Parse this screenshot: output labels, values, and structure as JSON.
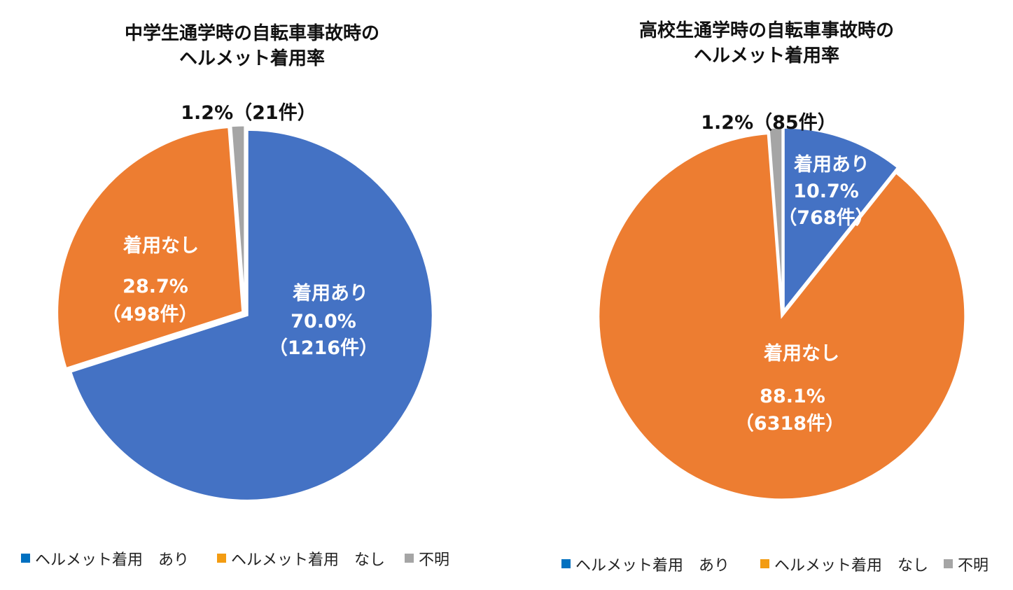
{
  "chart_data": [
    {
      "type": "pie",
      "title_lines": [
        "中学生通学時の自転車事故時の",
        "ヘルメット着用率"
      ],
      "slices": [
        {
          "name": "ヘルメット着用　あり",
          "value": 70.0,
          "count_label": "（1216件）",
          "percent_label": "70.0%",
          "text_label": "着用あり",
          "color": "#4472C4"
        },
        {
          "name": "ヘルメット着用　なし",
          "value": 28.7,
          "count_label": "（498件）",
          "percent_label": "28.7%",
          "text_label": "着用なし",
          "color": "#ED7D31"
        },
        {
          "name": "不明",
          "value": 1.2,
          "count_label": "",
          "percent_label": "",
          "text_label": "",
          "color": "#A5A5A5"
        }
      ],
      "outside_label": "1.2%（21件）",
      "legend": [
        "ヘルメット着用　あり",
        "ヘルメット着用　なし",
        "不明"
      ]
    },
    {
      "type": "pie",
      "title_lines": [
        "高校生通学時の自転車事故時の",
        "ヘルメット着用率"
      ],
      "slices": [
        {
          "name": "ヘルメット着用　あり",
          "value": 10.7,
          "count_label": "（768件）",
          "percent_label": "10.7%",
          "text_label": "着用あり",
          "color": "#4472C4"
        },
        {
          "name": "ヘルメット着用　なし",
          "value": 88.1,
          "count_label": "（6318件）",
          "percent_label": "88.1%",
          "text_label": "着用なし",
          "color": "#ED7D31"
        },
        {
          "name": "不明",
          "value": 1.2,
          "count_label": "",
          "percent_label": "",
          "text_label": "",
          "color": "#A5A5A5"
        }
      ],
      "outside_label": "1.2%（85件）",
      "legend": [
        "ヘルメット着用　あり",
        "ヘルメット着用　なし",
        "不明"
      ]
    }
  ]
}
